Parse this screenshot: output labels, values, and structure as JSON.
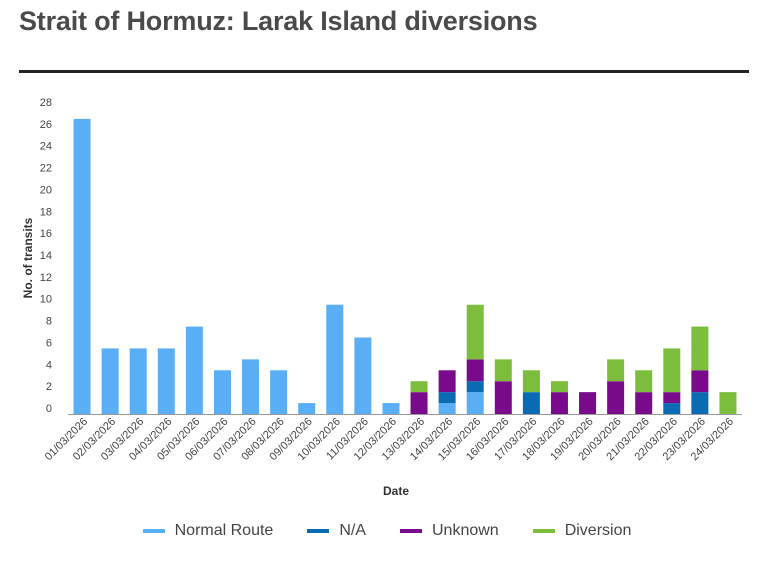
{
  "header": {
    "title": "Strait of Hormuz: Larak Island diversions"
  },
  "colors": {
    "normal": "#59aef5",
    "na": "#0a6bb5",
    "unknown": "#7a0a8c",
    "diversion": "#7dbd3c",
    "rule": "#222222"
  },
  "chart_data": {
    "type": "bar",
    "stacked": true,
    "xlabel": "Date",
    "ylabel": "No. of transits",
    "ylim": [
      0,
      28
    ],
    "yticks": [
      0,
      2,
      4,
      6,
      8,
      10,
      12,
      14,
      16,
      18,
      20,
      22,
      24,
      26,
      28
    ],
    "grid": false,
    "legend_position": "bottom",
    "categories": [
      "01/03/2026",
      "02/03/2026",
      "03/03/2026",
      "04/03/2026",
      "05/03/2026",
      "06/03/2026",
      "07/03/2026",
      "08/03/2026",
      "09/03/2026",
      "10/03/2026",
      "11/03/2026",
      "12/03/2026",
      "13/03/2026",
      "14/03/2026",
      "15/03/2026",
      "16/03/2026",
      "17/03/2026",
      "18/03/2026",
      "19/03/2026",
      "20/03/2026",
      "21/03/2026",
      "22/03/2026",
      "23/03/2026",
      "24/03/2026"
    ],
    "series": [
      {
        "name": "Normal Route",
        "color": "#59aef5",
        "values": [
          27,
          6,
          6,
          6,
          8,
          4,
          5,
          4,
          1,
          10,
          7,
          1,
          0,
          1,
          2,
          0,
          0,
          0,
          0,
          0,
          0,
          0,
          0,
          0
        ]
      },
      {
        "name": "N/A",
        "color": "#0a6bb5",
        "values": [
          0,
          0,
          0,
          0,
          0,
          0,
          0,
          0,
          0,
          0,
          0,
          0,
          0,
          1,
          1,
          0,
          2,
          0,
          0,
          0,
          0,
          1,
          2,
          0
        ]
      },
      {
        "name": "Unknown",
        "color": "#7a0a8c",
        "values": [
          0,
          0,
          0,
          0,
          0,
          0,
          0,
          0,
          0,
          0,
          0,
          0,
          2,
          2,
          2,
          3,
          0,
          2,
          2,
          3,
          2,
          1,
          2,
          0
        ]
      },
      {
        "name": "Diversion",
        "color": "#7dbd3c",
        "values": [
          0,
          0,
          0,
          0,
          0,
          0,
          0,
          0,
          0,
          0,
          0,
          0,
          1,
          0,
          5,
          2,
          2,
          1,
          0,
          2,
          2,
          4,
          4,
          2
        ]
      }
    ]
  }
}
